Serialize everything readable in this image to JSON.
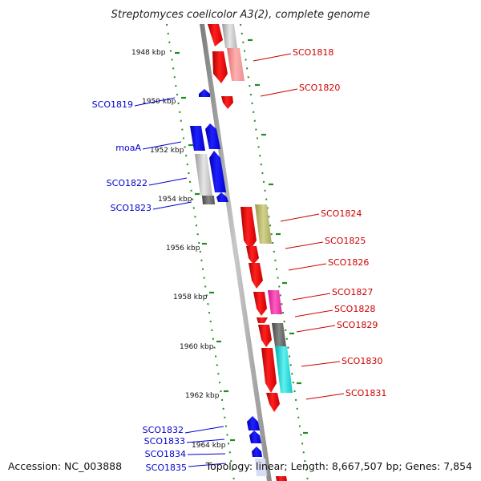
{
  "title": "Streptomyces coelicolor A3(2), complete genome",
  "accession": "Accession: NC_003888",
  "summary": "Topology: linear; Length: 8,667,507 bp; Genes: 7,854",
  "colors": {
    "forward": "#ff0000",
    "reverse": "#0000ff",
    "backbone": "#909090",
    "tick": "#228b22",
    "forward_label": "#cc0000",
    "reverse_label": "#0000cc"
  },
  "ruler_kbp": [
    "1948 kbp",
    "1950 kbp",
    "1952 kbp",
    "1954 kbp",
    "1956 kbp",
    "1958 kbp",
    "1960 kbp",
    "1962 kbp",
    "1964 kbp"
  ],
  "forward_labels": [
    "SCO1818",
    "SCO1820",
    "SCO1824",
    "SCO1825",
    "SCO1826",
    "SCO1827",
    "SCO1828",
    "SCO1829",
    "SCO1830",
    "SCO1831"
  ],
  "reverse_labels": [
    "SCO1819",
    "moaA",
    "SCO1822",
    "SCO1823",
    "SCO1832",
    "SCO1833",
    "SCO1834",
    "SCO1835"
  ]
}
